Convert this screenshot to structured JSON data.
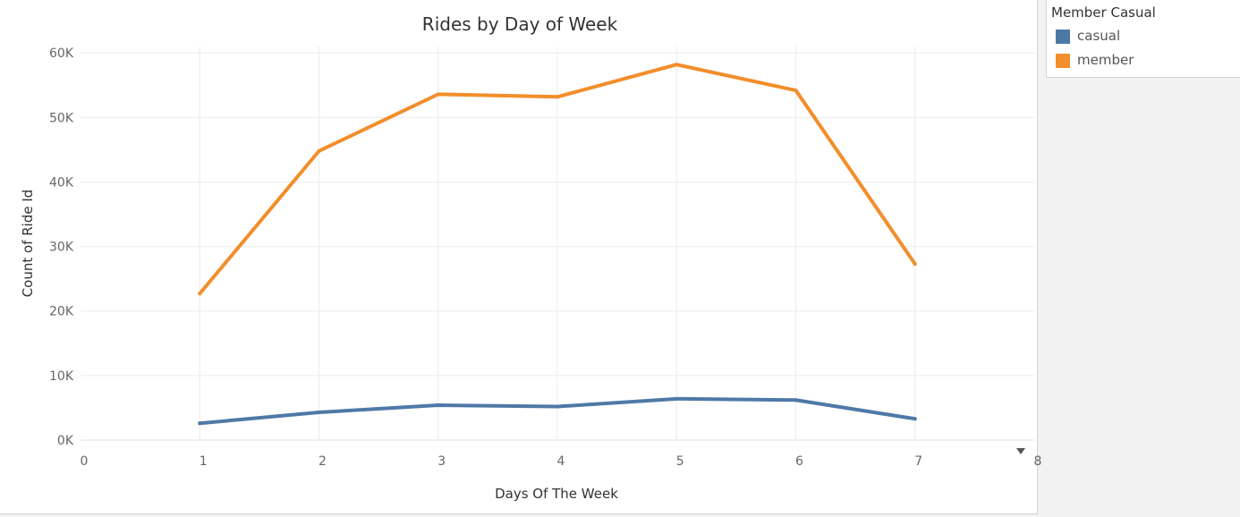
{
  "chart_data": {
    "type": "line",
    "title": "Rides by Day of Week",
    "xlabel": "Days Of The Week",
    "ylabel": "Count of Ride Id",
    "xlim": [
      0,
      8
    ],
    "ylim": [
      0,
      61000
    ],
    "x_ticks": [
      0,
      1,
      2,
      3,
      4,
      5,
      6,
      7,
      8
    ],
    "y_ticks": [
      0,
      10000,
      20000,
      30000,
      40000,
      50000,
      60000
    ],
    "y_tick_labels": [
      "0K",
      "10K",
      "20K",
      "30K",
      "40K",
      "50K",
      "60K"
    ],
    "grid": true,
    "legend_position": "right",
    "x": [
      1,
      2,
      3,
      4,
      5,
      6,
      7
    ],
    "series": [
      {
        "name": "casual",
        "color": "#4e79a7",
        "values": [
          2600,
          4300,
          5400,
          5200,
          6400,
          6200,
          3300
        ]
      },
      {
        "name": "member",
        "color": "#f28e2b",
        "values": [
          22700,
          44800,
          53600,
          53200,
          58200,
          54200,
          27300
        ]
      }
    ]
  },
  "legend": {
    "title": "Member Casual",
    "items": [
      {
        "label": "casual",
        "color": "#4e79a7"
      },
      {
        "label": "member",
        "color": "#f28e2b"
      }
    ]
  }
}
